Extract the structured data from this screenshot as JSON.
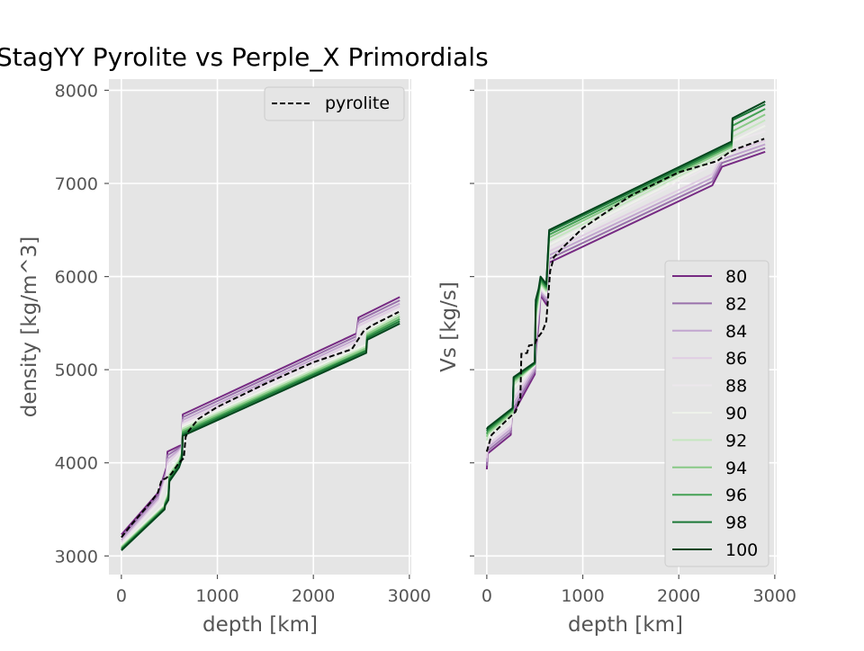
{
  "title": "StagYY Pyrolite vs Perple_X Primordials",
  "chart_data": [
    {
      "type": "line",
      "title": "StagYY Pyrolite vs Perple_X Primordials",
      "xlabel": "depth [km]",
      "ylabel": "density [kg/m^3]",
      "xlim": [
        -130,
        3020
      ],
      "ylim": [
        2800,
        8120
      ],
      "xticks": [
        0,
        1000,
        2000,
        3000
      ],
      "xtick_labels": [
        "0",
        "1000",
        "2000",
        "3000"
      ],
      "yticks": [
        3000,
        4000,
        5000,
        6000,
        7000,
        8000
      ],
      "ytick_labels": [
        "3000",
        "4000",
        "5000",
        "6000",
        "7000",
        "8000"
      ],
      "grid": true,
      "legend": {
        "position": "top-right",
        "entries": [
          "pyrolite"
        ]
      },
      "reference": {
        "name": "pyrolite",
        "style": "dashed",
        "color": "#000000",
        "x": [
          0,
          100,
          200,
          300,
          380,
          420,
          460,
          520,
          600,
          650,
          670,
          700,
          800,
          1000,
          1500,
          2000,
          2400,
          2520,
          2600,
          2890
        ],
        "y": [
          3200,
          3330,
          3450,
          3570,
          3680,
          3820,
          3830,
          3880,
          4000,
          4050,
          4280,
          4340,
          4470,
          4600,
          4850,
          5080,
          5220,
          5410,
          5470,
          5620
        ]
      },
      "series": [
        {
          "name": "80",
          "color": "#762a83",
          "x": [
            0,
            400,
            405,
            470,
            480,
            600,
            630,
            640,
            2450,
            2470,
            2900
          ],
          "y": [
            3230,
            3700,
            3740,
            3950,
            4120,
            4180,
            4190,
            4520,
            5390,
            5560,
            5780
          ]
        },
        {
          "name": "82",
          "color": "#9970ab",
          "x": [
            0,
            400,
            405,
            470,
            480,
            600,
            630,
            640,
            2450,
            2470,
            2900
          ],
          "y": [
            3200,
            3670,
            3710,
            3920,
            4080,
            4160,
            4180,
            4490,
            5360,
            5530,
            5745
          ]
        },
        {
          "name": "84",
          "color": "#c2a5cf",
          "x": [
            0,
            400,
            405,
            470,
            480,
            600,
            630,
            640,
            2450,
            2470,
            2900
          ],
          "y": [
            3170,
            3640,
            3680,
            3890,
            4040,
            4140,
            4170,
            4460,
            5330,
            5500,
            5710
          ]
        },
        {
          "name": "86",
          "color": "#e0cde3",
          "x": [
            0,
            400,
            405,
            470,
            480,
            600,
            630,
            640,
            2450,
            2470,
            2900
          ],
          "y": [
            3150,
            3610,
            3650,
            3860,
            4000,
            4120,
            4160,
            4430,
            5300,
            5470,
            5680
          ]
        },
        {
          "name": "88",
          "color": "#ece7ec",
          "x": [
            0,
            400,
            405,
            470,
            480,
            600,
            630,
            640,
            2450,
            2470,
            2900
          ],
          "y": [
            3130,
            3590,
            3630,
            3830,
            3960,
            4100,
            4150,
            4410,
            5280,
            5440,
            5650
          ]
        },
        {
          "name": "90",
          "color": "#eef2ea",
          "x": [
            0,
            450,
            455,
            490,
            500,
            600,
            630,
            640,
            2550,
            2560,
            2900
          ],
          "y": [
            3110,
            3560,
            3600,
            3700,
            3900,
            4050,
            4120,
            4390,
            5270,
            5420,
            5620
          ]
        },
        {
          "name": "92",
          "color": "#c5e6c0",
          "x": [
            0,
            450,
            455,
            490,
            500,
            600,
            630,
            640,
            2550,
            2560,
            2900
          ],
          "y": [
            3100,
            3540,
            3580,
            3680,
            3880,
            4030,
            4110,
            4370,
            5250,
            5400,
            5595
          ]
        },
        {
          "name": "94",
          "color": "#88ca86",
          "x": [
            0,
            450,
            455,
            490,
            500,
            600,
            630,
            640,
            2550,
            2560,
            2900
          ],
          "y": [
            3090,
            3530,
            3570,
            3660,
            3860,
            4010,
            4100,
            4350,
            5230,
            5380,
            5570
          ]
        },
        {
          "name": "96",
          "color": "#44a154",
          "x": [
            0,
            450,
            455,
            490,
            500,
            600,
            630,
            640,
            2550,
            2560,
            2900
          ],
          "y": [
            3080,
            3520,
            3560,
            3640,
            3840,
            3990,
            4080,
            4330,
            5210,
            5360,
            5545
          ]
        },
        {
          "name": "98",
          "color": "#1b7837",
          "x": [
            0,
            450,
            455,
            490,
            500,
            600,
            630,
            640,
            2550,
            2560,
            2900
          ],
          "y": [
            3070,
            3510,
            3550,
            3620,
            3820,
            3970,
            4060,
            4310,
            5200,
            5340,
            5520
          ]
        },
        {
          "name": "100",
          "color": "#00441b",
          "x": [
            0,
            450,
            455,
            490,
            500,
            600,
            630,
            640,
            2550,
            2560,
            2900
          ],
          "y": [
            3060,
            3500,
            3540,
            3600,
            3800,
            3950,
            4040,
            4290,
            5180,
            5320,
            5495
          ]
        }
      ]
    },
    {
      "type": "line",
      "xlabel": "depth [km]",
      "ylabel": "Vs [kg/s]",
      "xlim": [
        -130,
        3020
      ],
      "ylim": [
        2800,
        8120
      ],
      "xticks": [
        0,
        1000,
        2000,
        3000
      ],
      "xtick_labels": [
        "0",
        "1000",
        "2000",
        "3000"
      ],
      "yticks": [
        3000,
        4000,
        5000,
        6000,
        7000,
        8000
      ],
      "ytick_labels": [
        "",
        "",
        "",
        "",
        "",
        ""
      ],
      "grid": true,
      "legend": {
        "position": "lower-right",
        "entries": [
          "80",
          "82",
          "84",
          "86",
          "88",
          "90",
          "92",
          "94",
          "96",
          "98",
          "100"
        ]
      },
      "reference": {
        "name": "pyrolite",
        "style": "dashed",
        "color": "#000000",
        "x": [
          0,
          50,
          200,
          300,
          350,
          360,
          420,
          440,
          500,
          520,
          580,
          620,
          660,
          700,
          800,
          1000,
          1500,
          2000,
          2400,
          2520,
          2600,
          2890
        ],
        "y": [
          4120,
          4300,
          4450,
          4550,
          4700,
          5170,
          5180,
          5260,
          5270,
          5330,
          5410,
          5520,
          6060,
          6210,
          6320,
          6520,
          6870,
          7120,
          7240,
          7330,
          7370,
          7480
        ]
      },
      "series": [
        {
          "name": "80",
          "color": "#762a83",
          "x": [
            0,
            10,
            250,
            260,
            500,
            510,
            540,
            560,
            620,
            650,
            2350,
            2450,
            2900
          ],
          "y": [
            3930,
            4100,
            4300,
            4500,
            4950,
            5200,
            5500,
            5800,
            5700,
            6150,
            6980,
            7180,
            7340
          ]
        },
        {
          "name": "82",
          "color": "#9970ab",
          "x": [
            0,
            10,
            250,
            260,
            500,
            510,
            540,
            560,
            620,
            650,
            2350,
            2450,
            2900
          ],
          "y": [
            3970,
            4130,
            4330,
            4550,
            4980,
            5250,
            5550,
            5820,
            5730,
            6190,
            7020,
            7220,
            7380
          ]
        },
        {
          "name": "84",
          "color": "#c2a5cf",
          "x": [
            0,
            10,
            250,
            260,
            500,
            510,
            540,
            560,
            620,
            650,
            2350,
            2450,
            2900
          ],
          "y": [
            4010,
            4160,
            4360,
            4600,
            5010,
            5300,
            5600,
            5840,
            5760,
            6230,
            7060,
            7260,
            7420
          ]
        },
        {
          "name": "86",
          "color": "#e0cde3",
          "x": [
            0,
            10,
            250,
            260,
            500,
            510,
            540,
            560,
            620,
            650,
            2350,
            2450,
            2900
          ],
          "y": [
            4050,
            4190,
            4390,
            4650,
            5040,
            5350,
            5650,
            5860,
            5790,
            6270,
            7100,
            7300,
            7460
          ]
        },
        {
          "name": "88",
          "color": "#ece7ec",
          "x": [
            0,
            10,
            250,
            260,
            500,
            510,
            540,
            560,
            620,
            650,
            2450,
            2560,
            2900
          ],
          "y": [
            4100,
            4220,
            4420,
            4700,
            5060,
            5400,
            5700,
            5880,
            5800,
            6300,
            7250,
            7450,
            7560
          ]
        },
        {
          "name": "90",
          "color": "#eef2ea",
          "x": [
            0,
            10,
            270,
            280,
            500,
            510,
            540,
            560,
            620,
            650,
            2550,
            2560,
            2900
          ],
          "y": [
            4200,
            4280,
            4500,
            4800,
            5050,
            5500,
            5750,
            5900,
            5820,
            6340,
            7330,
            7450,
            7620
          ]
        },
        {
          "name": "92",
          "color": "#c5e6c0",
          "x": [
            0,
            10,
            270,
            280,
            500,
            510,
            540,
            560,
            620,
            650,
            2550,
            2560,
            2900
          ],
          "y": [
            4240,
            4300,
            4530,
            4840,
            5060,
            5550,
            5780,
            5920,
            5840,
            6380,
            7360,
            7500,
            7680
          ]
        },
        {
          "name": "94",
          "color": "#88ca86",
          "x": [
            0,
            10,
            270,
            280,
            500,
            510,
            540,
            560,
            620,
            650,
            2550,
            2560,
            2900
          ],
          "y": [
            4280,
            4320,
            4550,
            4870,
            5060,
            5600,
            5800,
            5940,
            5860,
            6420,
            7390,
            7560,
            7740
          ]
        },
        {
          "name": "96",
          "color": "#44a154",
          "x": [
            0,
            10,
            270,
            280,
            500,
            510,
            540,
            560,
            620,
            650,
            2550,
            2560,
            2900
          ],
          "y": [
            4310,
            4340,
            4570,
            4890,
            5060,
            5650,
            5830,
            5960,
            5880,
            6450,
            7410,
            7620,
            7800
          ]
        },
        {
          "name": "98",
          "color": "#1b7837",
          "x": [
            0,
            10,
            270,
            280,
            500,
            510,
            540,
            560,
            620,
            650,
            2550,
            2560,
            2900
          ],
          "y": [
            4340,
            4360,
            4580,
            4910,
            5070,
            5700,
            5850,
            5980,
            5900,
            6480,
            7430,
            7680,
            7850
          ]
        },
        {
          "name": "100",
          "color": "#00441b",
          "x": [
            0,
            10,
            270,
            280,
            500,
            510,
            540,
            560,
            620,
            650,
            2550,
            2560,
            2900
          ],
          "y": [
            4360,
            4380,
            4590,
            4920,
            5080,
            5750,
            5870,
            6000,
            5920,
            6500,
            7450,
            7700,
            7880
          ]
        }
      ]
    }
  ]
}
